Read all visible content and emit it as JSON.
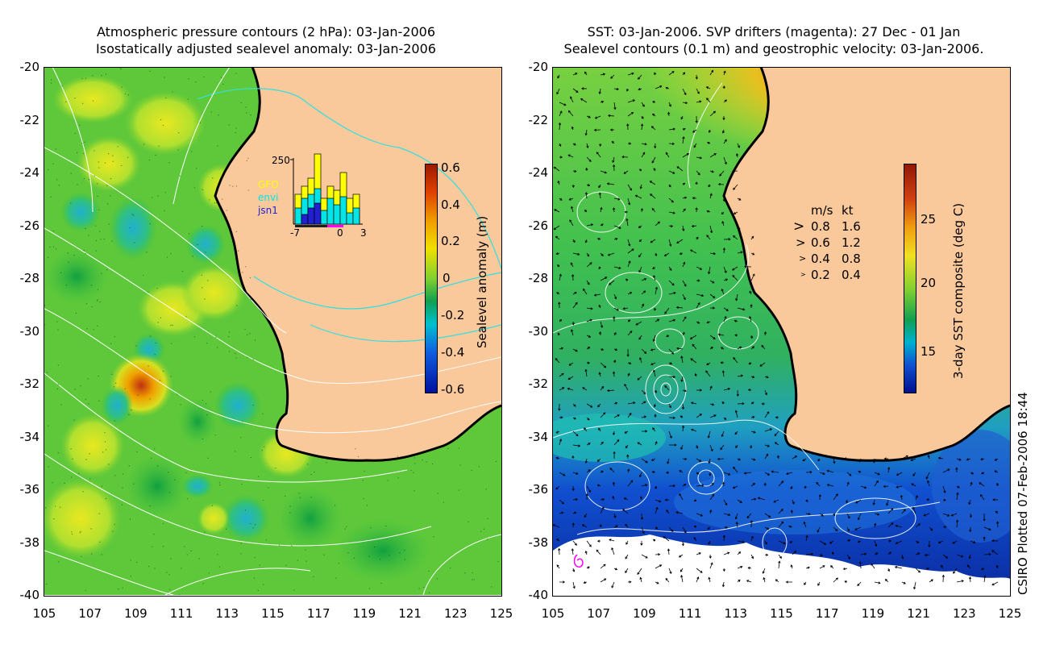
{
  "left_panel": {
    "title_line1": "Atmospheric pressure contours (2 hPa): 03-Jan-2006",
    "title_line2": "Isostatically adjusted sealevel anomaly: 03-Jan-2006",
    "colorbar": {
      "label": "Sealevel anomaly (m)",
      "ticks": [
        "0.6",
        "0.4",
        "0.2",
        "0",
        "-0.2",
        "-0.4",
        "-0.6"
      ],
      "range": [
        -0.6,
        0.6
      ]
    },
    "inset": {
      "ymax_label": "250",
      "legend": [
        "GFO",
        "envi",
        "jsn1"
      ],
      "legend_colors": [
        "#ffff00",
        "#00e5e5",
        "#2020d0"
      ],
      "x_labels": [
        "-7",
        "0",
        "3"
      ]
    }
  },
  "right_panel": {
    "title_line1": "SST: 03-Jan-2006. SVP drifters (magenta): 27 Dec - 01 Jan",
    "title_line2": "Sealevel contours (0.1 m) and geostrophic velocity: 03-Jan-2006.",
    "colorbar": {
      "label": "3-day SST composite (deg C)",
      "ticks": [
        "25",
        "20",
        "15"
      ],
      "range": [
        11,
        29
      ]
    },
    "speed_legend": {
      "headers": [
        "m/s",
        "kt"
      ],
      "rows": [
        {
          "ms": "0.8",
          "kt": "1.6"
        },
        {
          "ms": "0.6",
          "kt": "1.2"
        },
        {
          "ms": "0.4",
          "kt": "0.8"
        },
        {
          "ms": "0.2",
          "kt": "0.4"
        }
      ]
    }
  },
  "axes": {
    "y_ticks": [
      "-20",
      "-22",
      "-24",
      "-26",
      "-28",
      "-30",
      "-32",
      "-34",
      "-36",
      "-38",
      "-40"
    ],
    "x_ticks": [
      "105",
      "107",
      "109",
      "111",
      "113",
      "115",
      "117",
      "119",
      "121",
      "123",
      "125"
    ]
  },
  "footer": "CSIRO Plotted 07-Feb-2006 18:44",
  "colors": {
    "land": "#f9c89b",
    "coast": "#000000",
    "drifter": "#ff00ff",
    "contour": "#ffffff"
  }
}
